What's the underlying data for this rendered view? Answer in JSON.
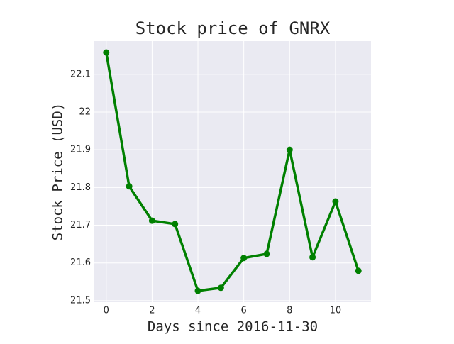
{
  "chart_data": {
    "type": "line",
    "title": "Stock price of GNRX",
    "xlabel": "Days since 2016-11-30",
    "ylabel": "Stock Price (USD)",
    "x": [
      0,
      1,
      2,
      3,
      4,
      5,
      6,
      7,
      8,
      9,
      10,
      11
    ],
    "series": [
      {
        "name": "GNRX",
        "color": "#008000",
        "values": [
          22.158,
          21.803,
          21.712,
          21.703,
          21.526,
          21.534,
          21.613,
          21.624,
          21.9,
          21.615,
          21.763,
          21.579
        ]
      }
    ],
    "xlim": [
      -0.55,
      11.55
    ],
    "xticks": [
      0,
      2,
      4,
      6,
      8,
      10
    ],
    "ylim": [
      21.496,
      22.188
    ],
    "yticks": [
      21.5,
      21.6,
      21.7,
      21.8,
      21.9,
      22.0,
      22.1
    ],
    "grid": true
  }
}
